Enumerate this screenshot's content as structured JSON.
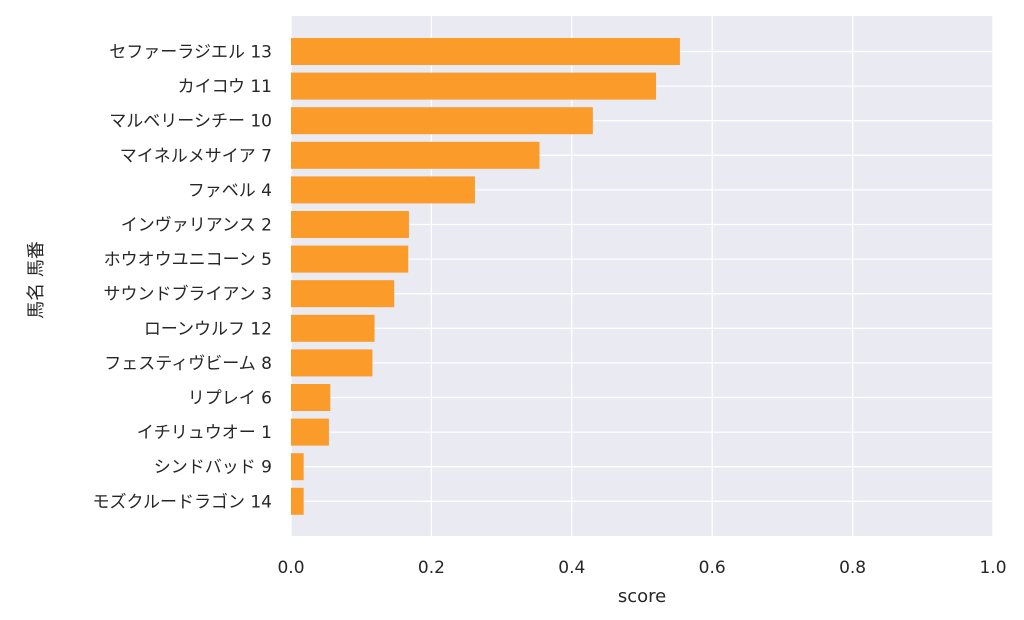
{
  "chart_data": {
    "type": "bar",
    "orientation": "horizontal",
    "xlabel": "score",
    "ylabel": "馬名 馬番",
    "xlim": [
      0.0,
      1.0
    ],
    "x_ticks": [
      "0.0",
      "0.2",
      "0.4",
      "0.6",
      "0.8",
      "1.0"
    ],
    "grid": true,
    "categories": [
      "セファーラジエル 13",
      "カイコウ 11",
      "マルベリーシチー 10",
      "マイネルメサイア 7",
      "ファベル 4",
      "インヴァリアンス 2",
      "ホウオウユニコーン 5",
      "サウンドブライアン 3",
      "ローンウルフ 12",
      "フェスティヴビーム 8",
      "リプレイ 6",
      "イチリュウオー 1",
      "シンドバッド 9",
      "モズクルードラゴン 14"
    ],
    "values": [
      0.554,
      0.52,
      0.43,
      0.354,
      0.262,
      0.168,
      0.167,
      0.147,
      0.119,
      0.116,
      0.056,
      0.054,
      0.018,
      0.018
    ],
    "colors": {
      "bar": "#fb9b2a",
      "plot_background": "#eaeaf2",
      "grid": "#ffffff",
      "text": "#262626"
    }
  }
}
